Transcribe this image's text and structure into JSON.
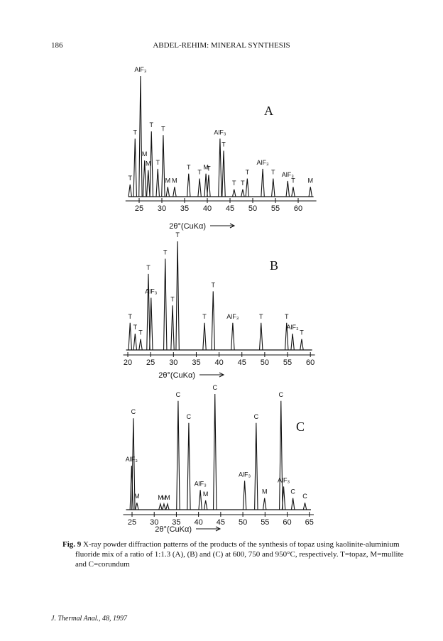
{
  "header": {
    "page_number": "186",
    "running_title": "ABDEL-REHIM: MINERAL SYNTHESIS"
  },
  "figure": {
    "panels": [
      {
        "letter": "A",
        "x_label": "2θ°(CuKα)",
        "xlim": [
          22,
          64
        ],
        "xticks": [
          25,
          30,
          35,
          40,
          45,
          50,
          55,
          60
        ],
        "peaks": [
          {
            "x": 23.0,
            "h": 10,
            "label": "T"
          },
          {
            "x": 24.1,
            "h": 48,
            "label": "T"
          },
          {
            "x": 25.3,
            "h": 100,
            "label": "AlF₃"
          },
          {
            "x": 26.2,
            "h": 30,
            "label": "M"
          },
          {
            "x": 27.0,
            "h": 22,
            "label": "M"
          },
          {
            "x": 27.7,
            "h": 54,
            "label": "T"
          },
          {
            "x": 29.1,
            "h": 23,
            "label": "T"
          },
          {
            "x": 30.3,
            "h": 51,
            "label": "T"
          },
          {
            "x": 31.3,
            "h": 8,
            "label": "M"
          },
          {
            "x": 32.8,
            "h": 8,
            "label": "M"
          },
          {
            "x": 35.9,
            "h": 19,
            "label": "T"
          },
          {
            "x": 38.3,
            "h": 15,
            "label": "T"
          },
          {
            "x": 39.7,
            "h": 19,
            "label": "M"
          },
          {
            "x": 40.3,
            "h": 18,
            "label": "T"
          },
          {
            "x": 42.8,
            "h": 48,
            "label": "AlF₃"
          },
          {
            "x": 43.6,
            "h": 38,
            "label": "T"
          },
          {
            "x": 45.9,
            "h": 6,
            "label": "T"
          },
          {
            "x": 47.8,
            "h": 6,
            "label": "T"
          },
          {
            "x": 48.8,
            "h": 15,
            "label": "T"
          },
          {
            "x": 52.2,
            "h": 23,
            "label": "AlF₃"
          },
          {
            "x": 54.5,
            "h": 15,
            "label": "T"
          },
          {
            "x": 57.7,
            "h": 13,
            "label": "AlF₃"
          },
          {
            "x": 58.9,
            "h": 8,
            "label": "T"
          },
          {
            "x": 62.7,
            "h": 8,
            "label": "M"
          }
        ]
      },
      {
        "letter": "B",
        "x_label": "2θ°(CuKα)",
        "xlim": [
          19,
          61
        ],
        "xticks": [
          20,
          25,
          30,
          35,
          40,
          45,
          50,
          55,
          60
        ],
        "peaks": [
          {
            "x": 20.5,
            "h": 25,
            "label": "T"
          },
          {
            "x": 21.6,
            "h": 15,
            "label": "T"
          },
          {
            "x": 22.8,
            "h": 10,
            "label": "T"
          },
          {
            "x": 24.5,
            "h": 70,
            "label": "T"
          },
          {
            "x": 25.1,
            "h": 48,
            "label": "AlF₃"
          },
          {
            "x": 28.2,
            "h": 84,
            "label": "T"
          },
          {
            "x": 29.8,
            "h": 41,
            "label": "T"
          },
          {
            "x": 30.9,
            "h": 100,
            "label": "T"
          },
          {
            "x": 36.8,
            "h": 25,
            "label": "T"
          },
          {
            "x": 38.7,
            "h": 54,
            "label": "T"
          },
          {
            "x": 43.0,
            "h": 25,
            "label": "AlF₃"
          },
          {
            "x": 49.2,
            "h": 25,
            "label": "T"
          },
          {
            "x": 54.8,
            "h": 25,
            "label": "T"
          },
          {
            "x": 56.1,
            "h": 15,
            "label": "AlF₃"
          },
          {
            "x": 58.1,
            "h": 10,
            "label": "T"
          }
        ]
      },
      {
        "letter": "C",
        "x_label": "2θ°(CuKα)",
        "xlim": [
          23,
          66
        ],
        "xticks": [
          25,
          30,
          35,
          40,
          45,
          50,
          55,
          60,
          65
        ],
        "peaks": [
          {
            "x": 24.9,
            "h": 38,
            "label": "AlF₃"
          },
          {
            "x": 25.3,
            "h": 79,
            "label": "C"
          },
          {
            "x": 26.1,
            "h": 6,
            "label": "M"
          },
          {
            "x": 31.4,
            "h": 5,
            "label": "M"
          },
          {
            "x": 32.2,
            "h": 5,
            "label": "M"
          },
          {
            "x": 33.0,
            "h": 5,
            "label": "M"
          },
          {
            "x": 35.4,
            "h": 94,
            "label": "C"
          },
          {
            "x": 37.8,
            "h": 75,
            "label": "C"
          },
          {
            "x": 40.4,
            "h": 17,
            "label": "AlF₃"
          },
          {
            "x": 41.6,
            "h": 8,
            "label": "M"
          },
          {
            "x": 43.7,
            "h": 100,
            "label": "C"
          },
          {
            "x": 50.4,
            "h": 25,
            "label": "AlF₃"
          },
          {
            "x": 53.0,
            "h": 75,
            "label": "C"
          },
          {
            "x": 54.9,
            "h": 10,
            "label": "M"
          },
          {
            "x": 58.6,
            "h": 94,
            "label": "C"
          },
          {
            "x": 59.2,
            "h": 20,
            "label": "AlF₃"
          },
          {
            "x": 61.3,
            "h": 10,
            "label": "C"
          },
          {
            "x": 64.0,
            "h": 6,
            "label": "C"
          }
        ]
      }
    ]
  },
  "caption": {
    "label": "Fig. 9",
    "text": "X-ray powder diffraction patterns of the products of the synthesis of topaz using kaolinite-aluminium fluoride mix of a ratio of 1:1.3 (A), (B) and (C) at 600, 750 and 950°C, respectively. T=topaz, M=mullite and C=corundum"
  },
  "footer": "J. Thermal Anal., 48, 1997"
}
